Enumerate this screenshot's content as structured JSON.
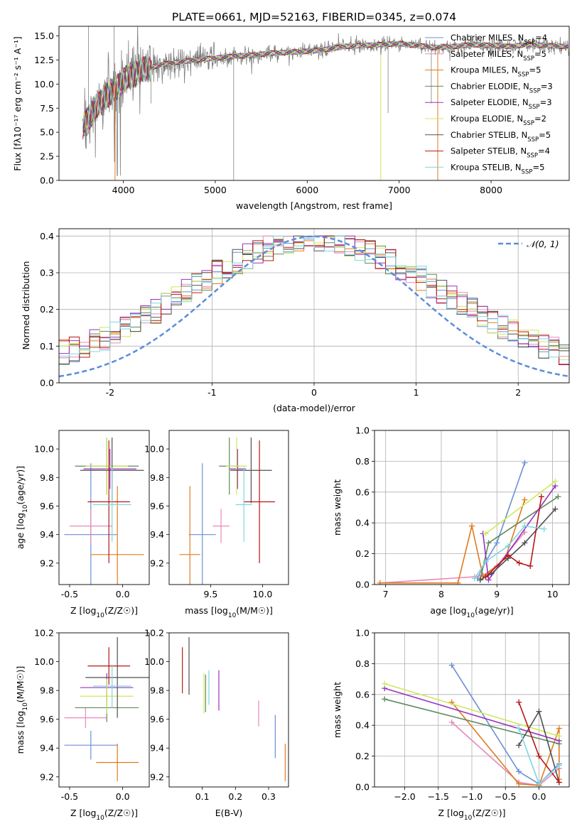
{
  "title": "PLATE=0661, MJD=52163, FIBERID=0345, z=0.074",
  "colors": {
    "chab_miles": "#6b8fd4",
    "salp_miles": "#e889b9",
    "krou_miles": "#e07a1f",
    "chab_elodie": "#5e8a5e",
    "salp_elodie": "#9b30c0",
    "krou_elodie": "#cfe85a",
    "chab_stelib": "#505050",
    "salp_stelib": "#b51818",
    "krou_stelib": "#7fd6e0",
    "data": "#808080",
    "normal": "#5b8dd9",
    "grid": "#b0b0b0"
  },
  "legend": [
    {
      "key": "chab_miles",
      "label": "Chabrier MILES, N",
      "n": "4"
    },
    {
      "key": "salp_miles",
      "label": "Salpeter MILES, N",
      "n": "5"
    },
    {
      "key": "krou_miles",
      "label": "Kroupa MILES, N",
      "n": "5"
    },
    {
      "key": "chab_elodie",
      "label": "Chabrier ELODIE, N",
      "n": "3"
    },
    {
      "key": "salp_elodie",
      "label": "Salpeter ELODIE, N",
      "n": "3"
    },
    {
      "key": "krou_elodie",
      "label": "Kroupa ELODIE, N",
      "n": "2"
    },
    {
      "key": "chab_stelib",
      "label": "Chabrier STELIB, N",
      "n": "5"
    },
    {
      "key": "salp_stelib",
      "label": "Salpeter STELIB, N",
      "n": "4"
    },
    {
      "key": "krou_stelib",
      "label": "Kroupa STELIB, N",
      "n": "5"
    }
  ],
  "legend_sub": "SSP",
  "chart_data": [
    {
      "panel": "spectrum",
      "type": "line",
      "title": "PLATE=0661, MJD=52163, FIBERID=0345, z=0.074",
      "xlabel": "wavelength [Angstrom, rest frame]",
      "ylabel": "Flux [fλ10⁻¹⁷ erg cm⁻² s⁻¹ A⁻¹]",
      "xlim": [
        3300,
        8850
      ],
      "ylim": [
        0,
        16
      ],
      "xticks": [
        4000,
        5000,
        6000,
        7000,
        8000
      ],
      "yticks": [
        0.0,
        2.5,
        5.0,
        7.5,
        10.0,
        12.5,
        15.0
      ],
      "model_continuum": {
        "x": [
          3560,
          3600,
          3700,
          3800,
          3900,
          4000,
          4100,
          4200,
          4400,
          4600,
          4800,
          5000,
          5200,
          5400,
          5600,
          5800,
          6000,
          6200,
          6400,
          6600,
          6800,
          7000,
          7200,
          7400,
          7600,
          7800,
          8000,
          8200,
          8400,
          8600,
          8800
        ],
        "y": [
          5.5,
          6.3,
          7.5,
          8.6,
          9.4,
          10.4,
          11.0,
          11.4,
          12.0,
          12.3,
          12.5,
          12.7,
          12.9,
          13.0,
          13.2,
          13.3,
          13.4,
          13.6,
          13.9,
          14.0,
          14.1,
          14.2,
          14.0,
          13.8,
          13.9,
          14.1,
          14.0,
          13.9,
          14.1,
          14.0,
          13.9
        ]
      }
    },
    {
      "panel": "residuals",
      "type": "histogram",
      "xlabel": "(data-model)/error",
      "ylabel": "Normed distribution",
      "xlim": [
        -2.5,
        2.5
      ],
      "ylim": [
        0,
        0.42
      ],
      "xticks": [
        -2,
        -1,
        0,
        1,
        2
      ],
      "yticks": [
        0.0,
        0.1,
        0.2,
        0.3,
        0.4
      ],
      "reference": {
        "name": "𝒩(0, 1)",
        "mean": 0,
        "sigma": 1
      },
      "bin_width": 0.1
    },
    {
      "panel": "Z_vs_age",
      "type": "scatter",
      "xlabel": "Z [log10(Z/Z☉)]",
      "ylabel": "age  [log10(age/yr)]",
      "xlim": [
        -0.6,
        0.25
      ],
      "ylim": [
        9.05,
        10.13
      ],
      "xticks": [
        -0.5,
        0.0
      ],
      "yticks": [
        9.2,
        9.4,
        9.6,
        9.8,
        10.0
      ],
      "points": [
        {
          "s": "chab_miles",
          "x": -0.3,
          "xerr": 0.25,
          "y": 9.4,
          "yerr": 0.5
        },
        {
          "s": "salp_miles",
          "x": -0.3,
          "xerr": 0.2,
          "y": 9.46,
          "yerr": 0.12
        },
        {
          "s": "krou_miles",
          "x": -0.05,
          "xerr": 0.25,
          "y": 9.26,
          "yerr": 0.48
        },
        {
          "s": "chab_elodie",
          "x": -0.15,
          "xerr": 0.3,
          "y": 9.88,
          "yerr": 0.2
        },
        {
          "s": "salp_elodie",
          "x": -0.12,
          "xerr": 0.25,
          "y": 9.86,
          "yerr": 0.14
        },
        {
          "s": "krou_elodie",
          "x": -0.15,
          "xerr": 0.2,
          "y": 9.88,
          "yerr": 0.2
        },
        {
          "s": "chab_stelib",
          "x": -0.1,
          "xerr": 0.3,
          "y": 9.85,
          "yerr": 0.23
        },
        {
          "s": "salp_stelib",
          "x": -0.13,
          "xerr": 0.2,
          "y": 9.63,
          "yerr": 0.43
        },
        {
          "s": "krou_stelib",
          "x": -0.1,
          "xerr": 0.18,
          "y": 9.61,
          "yerr": 0.26
        }
      ]
    },
    {
      "panel": "mass_vs_age",
      "type": "scatter",
      "xlabel": "mass [log10(M/M☉)]",
      "ylabel": "",
      "xlim": [
        9.1,
        10.25
      ],
      "ylim": [
        9.05,
        10.13
      ],
      "xticks": [
        9.5,
        10.0
      ],
      "yticks": [
        9.2,
        9.4,
        9.6,
        9.8,
        10.0
      ],
      "points": [
        {
          "s": "chab_miles",
          "x": 9.42,
          "xerr": 0.13,
          "y": 9.4,
          "yerr": 0.5
        },
        {
          "s": "salp_miles",
          "x": 9.6,
          "xerr": 0.08,
          "y": 9.46,
          "yerr": 0.12
        },
        {
          "s": "krou_miles",
          "x": 9.3,
          "xerr": 0.1,
          "y": 9.26,
          "yerr": 0.48
        },
        {
          "s": "chab_elodie",
          "x": 9.68,
          "xerr": 0.1,
          "y": 9.88,
          "yerr": 0.2
        },
        {
          "s": "salp_elodie",
          "x": 9.76,
          "xerr": 0.08,
          "y": 9.86,
          "yerr": 0.14
        },
        {
          "s": "krou_elodie",
          "x": 9.75,
          "xerr": 0.1,
          "y": 9.88,
          "yerr": 0.2
        },
        {
          "s": "chab_stelib",
          "x": 9.89,
          "xerr": 0.2,
          "y": 9.85,
          "yerr": 0.23
        },
        {
          "s": "salp_stelib",
          "x": 9.97,
          "xerr": 0.15,
          "y": 9.63,
          "yerr": 0.43
        },
        {
          "s": "krou_stelib",
          "x": 9.82,
          "xerr": 0.08,
          "y": 9.61,
          "yerr": 0.26
        }
      ]
    },
    {
      "panel": "age_vs_weight",
      "type": "line",
      "xlabel": "age  [log10(age/yr)]",
      "ylabel": "mass weight",
      "xlim": [
        6.8,
        10.3
      ],
      "ylim": [
        0,
        1
      ],
      "xticks": [
        7,
        8,
        9,
        10
      ],
      "yticks": [
        0.0,
        0.2,
        0.4,
        0.6,
        0.8,
        1.0
      ],
      "series": [
        {
          "s": "chab_miles",
          "x": [
            8.65,
            8.8,
            9.0,
            9.5
          ],
          "y": [
            0.04,
            0.15,
            0.27,
            0.79
          ]
        },
        {
          "s": "salp_miles",
          "x": [
            6.9,
            8.6,
            8.75,
            9.0,
            9.5
          ],
          "y": [
            0.01,
            0.05,
            0.06,
            0.12,
            0.34
          ]
        },
        {
          "s": "krou_miles",
          "x": [
            6.9,
            8.3,
            8.55,
            8.75,
            9.15,
            9.5
          ],
          "y": [
            0.01,
            0.01,
            0.38,
            0.05,
            0.17,
            0.55
          ]
        },
        {
          "s": "chab_elodie",
          "x": [
            8.7,
            8.85,
            10.1
          ],
          "y": [
            0.03,
            0.27,
            0.57
          ]
        },
        {
          "s": "salp_elodie",
          "x": [
            8.75,
            8.85,
            10.05
          ],
          "y": [
            0.33,
            0.03,
            0.64
          ]
        },
        {
          "s": "krou_elodie",
          "x": [
            8.8,
            10.05
          ],
          "y": [
            0.33,
            0.67
          ]
        },
        {
          "s": "chab_stelib",
          "x": [
            8.7,
            8.9,
            9.2,
            9.5,
            10.05
          ],
          "y": [
            0.03,
            0.07,
            0.17,
            0.27,
            0.49
          ]
        },
        {
          "s": "salp_stelib",
          "x": [
            8.8,
            9.2,
            9.4,
            9.6,
            9.8
          ],
          "y": [
            0.05,
            0.19,
            0.14,
            0.12,
            0.57
          ]
        },
        {
          "s": "krou_stelib",
          "x": [
            8.6,
            8.8,
            9.2,
            9.5,
            9.85
          ],
          "y": [
            0.04,
            0.15,
            0.25,
            0.38,
            0.36
          ]
        }
      ]
    },
    {
      "panel": "Z_vs_mass",
      "type": "scatter",
      "xlabel": "Z [log10(Z/Z☉)]",
      "ylabel": "mass [log10(M/M☉)]",
      "xlim": [
        -0.6,
        0.25
      ],
      "ylim": [
        9.13,
        10.2
      ],
      "xticks": [
        -0.5,
        0.0
      ],
      "yticks": [
        9.2,
        9.4,
        9.6,
        9.8,
        10.0,
        10.2
      ],
      "points": [
        {
          "s": "chab_miles",
          "x": -0.3,
          "xerr": 0.25,
          "y": 9.42,
          "yerr": 0.1
        },
        {
          "s": "salp_miles",
          "x": -0.35,
          "xerr": 0.2,
          "y": 9.61,
          "yerr": 0.07
        },
        {
          "s": "krou_miles",
          "x": -0.05,
          "xerr": 0.2,
          "y": 9.3,
          "yerr": 0.13
        },
        {
          "s": "chab_elodie",
          "x": -0.15,
          "xerr": 0.3,
          "y": 9.68,
          "yerr": 0.1
        },
        {
          "s": "salp_elodie",
          "x": -0.15,
          "xerr": 0.25,
          "y": 9.82,
          "yerr": 0.1
        },
        {
          "s": "krou_elodie",
          "x": -0.15,
          "xerr": 0.25,
          "y": 9.76,
          "yerr": 0.12
        },
        {
          "s": "chab_stelib",
          "x": -0.05,
          "xerr": 0.3,
          "y": 9.89,
          "yerr": 0.28
        },
        {
          "s": "salp_stelib",
          "x": -0.13,
          "xerr": 0.2,
          "y": 9.97,
          "yerr": 0.13
        },
        {
          "s": "krou_stelib",
          "x": -0.1,
          "xerr": 0.18,
          "y": 9.83,
          "yerr": 0.15
        }
      ]
    },
    {
      "panel": "ebv_vs_mass",
      "type": "scatter",
      "xlabel": "E(B-V)",
      "ylabel": "",
      "xlim": [
        0.0,
        0.36
      ],
      "ylim": [
        9.13,
        10.2
      ],
      "xticks": [
        0.1,
        0.2,
        0.3
      ],
      "yticks": [
        9.2,
        9.4,
        9.6,
        9.8,
        10.0,
        10.2
      ],
      "points": [
        {
          "s": "chab_miles",
          "x": 0.32,
          "y": 9.48,
          "yerr": 0.15
        },
        {
          "s": "salp_miles",
          "x": 0.27,
          "y": 9.64,
          "yerr": 0.09
        },
        {
          "s": "krou_miles",
          "x": 0.35,
          "y": 9.3,
          "yerr": 0.13
        },
        {
          "s": "chab_elodie",
          "x": 0.11,
          "y": 9.78,
          "yerr": 0.13
        },
        {
          "s": "salp_elodie",
          "x": 0.15,
          "y": 9.8,
          "yerr": 0.14
        },
        {
          "s": "krou_elodie",
          "x": 0.105,
          "y": 9.78,
          "yerr": 0.14
        },
        {
          "s": "chab_stelib",
          "x": 0.06,
          "y": 9.97,
          "yerr": 0.2
        },
        {
          "s": "salp_stelib",
          "x": 0.04,
          "y": 9.94,
          "yerr": 0.16
        },
        {
          "s": "krou_stelib",
          "x": 0.12,
          "y": 9.82,
          "yerr": 0.12
        }
      ]
    },
    {
      "panel": "Z_vs_weight",
      "type": "line",
      "xlabel": "Z [log10(Z/Z☉)]",
      "ylabel": "mass weight",
      "xlim": [
        -2.45,
        0.45
      ],
      "ylim": [
        0,
        1
      ],
      "xticks": [
        -2.0,
        -1.5,
        -1.0,
        -0.5,
        0.0
      ],
      "yticks": [
        0.0,
        0.2,
        0.4,
        0.6,
        0.8,
        1.0
      ],
      "series": [
        {
          "s": "chab_miles",
          "x": [
            -1.3,
            -0.3,
            0.0,
            0.3
          ],
          "y": [
            0.79,
            0.1,
            0.02,
            0.15
          ]
        },
        {
          "s": "salp_miles",
          "x": [
            -1.3,
            -0.3,
            0.0,
            0.3
          ],
          "y": [
            0.42,
            0.03,
            0.01,
            0.12
          ]
        },
        {
          "s": "krou_miles",
          "x": [
            -1.3,
            -0.3,
            0.0,
            0.3,
            0.3
          ],
          "y": [
            0.55,
            0.02,
            0.01,
            0.38,
            0.05
          ]
        },
        {
          "s": "chab_elodie",
          "x": [
            -2.3,
            0.3
          ],
          "y": [
            0.57,
            0.28
          ]
        },
        {
          "s": "salp_elodie",
          "x": [
            -2.3,
            0.3
          ],
          "y": [
            0.64,
            0.3
          ]
        },
        {
          "s": "krou_elodie",
          "x": [
            -2.3,
            0.3
          ],
          "y": [
            0.67,
            0.33
          ]
        },
        {
          "s": "chab_stelib",
          "x": [
            -0.3,
            0.0,
            0.3
          ],
          "y": [
            0.27,
            0.49,
            0.03
          ]
        },
        {
          "s": "salp_stelib",
          "x": [
            -0.3,
            0.0,
            0.3
          ],
          "y": [
            0.55,
            0.2,
            0.03
          ]
        },
        {
          "s": "krou_stelib",
          "x": [
            -0.3,
            0.0,
            0.3
          ],
          "y": [
            0.38,
            0.02,
            0.14
          ]
        }
      ]
    }
  ]
}
